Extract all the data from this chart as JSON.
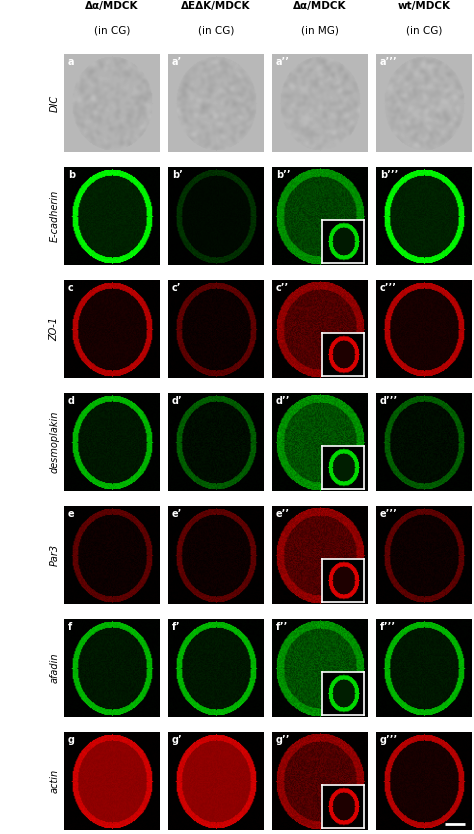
{
  "col_headers": [
    "Δα/MDCK\n(in CG)",
    "ΔEΔK/MDCK\n(in CG)",
    "Δα/MDCK\n(in MG)",
    "wt/MDCK\n(in CG)"
  ],
  "row_labels": [
    "DIC",
    "E-cadherin",
    "ZO-1",
    "desmoplakin",
    "Par3",
    "afadin",
    "actin"
  ],
  "panel_labels": [
    [
      "a",
      "a’",
      "a’’",
      "a’’’"
    ],
    [
      "b",
      "b’",
      "b’’",
      "b’’’"
    ],
    [
      "c",
      "c’",
      "c’’",
      "c’’’"
    ],
    [
      "d",
      "d’",
      "d’’",
      "d’’’"
    ],
    [
      "e",
      "e’",
      "e’’",
      "e’’’"
    ],
    [
      "f",
      "f’",
      "f’’",
      "f’’’"
    ],
    [
      "g",
      "g’",
      "g’’",
      "g’’’"
    ]
  ],
  "row_colors": [
    "gray",
    "green",
    "red",
    "green",
    "red",
    "green",
    "red"
  ],
  "background_color": "#000000",
  "header_color": "#000000",
  "text_color": "#000000",
  "figure_bg": "#ffffff",
  "scale_bar_color": "#ffffff",
  "n_rows": 7,
  "n_cols": 4
}
